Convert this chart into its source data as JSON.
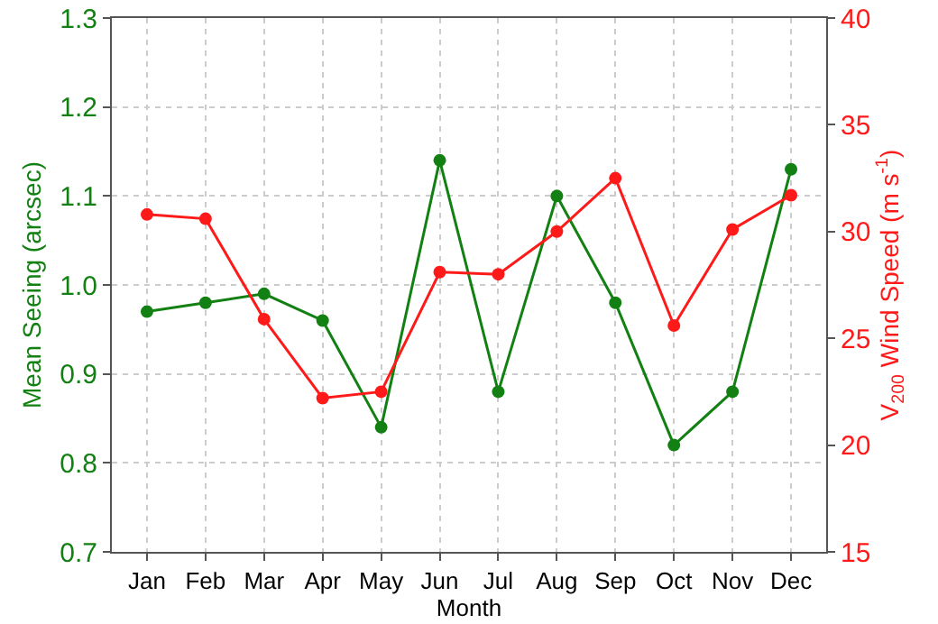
{
  "chart_data": {
    "type": "line",
    "xlabel": "Month",
    "ylabel": "Mean Seeing (arcsec)",
    "y2label": "V$_{200}$ Wind Speed (m s$^{-1}$)",
    "categories": [
      "Jan",
      "Feb",
      "Mar",
      "Apr",
      "May",
      "Jun",
      "Jul",
      "Aug",
      "Sep",
      "Oct",
      "Nov",
      "Dec"
    ],
    "series": [
      {
        "color": "#138013",
        "values": [
          0.97,
          0.98,
          0.99,
          0.96,
          0.84,
          1.14,
          0.88,
          1.1,
          0.98,
          0.82,
          0.88,
          1.13
        ]
      },
      {
        "color": "#ff1a1a",
        "axis": "y2",
        "values": [
          30.8,
          30.6,
          25.9,
          22.2,
          22.5,
          28.1,
          28.0,
          30.0,
          32.5,
          25.6,
          30.1,
          31.7
        ]
      }
    ],
    "ylim": [
      0.7,
      1.3
    ],
    "yticks": [
      {
        "value": 0.7,
        "label": "0.7"
      },
      {
        "value": 0.8,
        "label": "0.8"
      },
      {
        "value": 0.9,
        "label": "0.9"
      },
      {
        "value": 1.0,
        "label": "1.0"
      },
      {
        "value": 1.1,
        "label": "1.1"
      },
      {
        "value": 1.2,
        "label": "1.2"
      },
      {
        "value": 1.3,
        "label": "1.3"
      }
    ],
    "y2lim": [
      15,
      40
    ],
    "y2ticks": [
      15,
      20,
      25,
      30,
      35,
      40
    ],
    "grid": true,
    "marker": "circle",
    "line_style": "solid"
  }
}
